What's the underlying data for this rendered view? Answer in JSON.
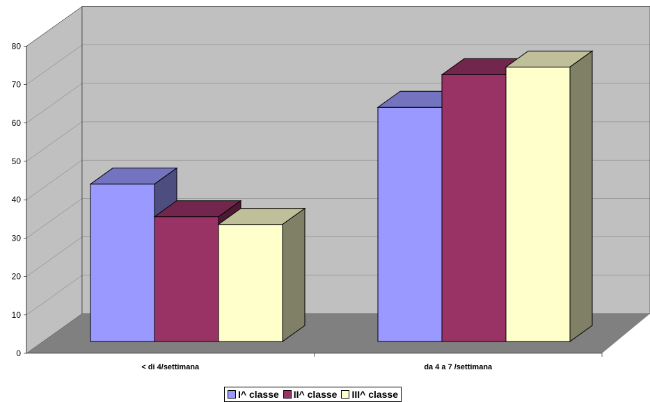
{
  "chart_data": {
    "type": "bar",
    "style": "3d-clustered",
    "categories": [
      "< di 4/settimana",
      "da 4 a 7 /settimana"
    ],
    "series": [
      {
        "name": "I^ classe",
        "values": [
          41,
          61
        ],
        "color": "#9999ff"
      },
      {
        "name": "II^ classe",
        "values": [
          32.5,
          69.5
        ],
        "color": "#993366"
      },
      {
        "name": "III^ classe",
        "values": [
          30.5,
          71.5
        ],
        "color": "#ffffcc"
      }
    ],
    "ylim": [
      0,
      80
    ],
    "yticks": [
      0,
      10,
      20,
      30,
      40,
      50,
      60,
      70,
      80
    ],
    "grid": true,
    "legend_position": "bottom",
    "wall_color": "#c0c0c0",
    "floor_color": "#808080"
  }
}
